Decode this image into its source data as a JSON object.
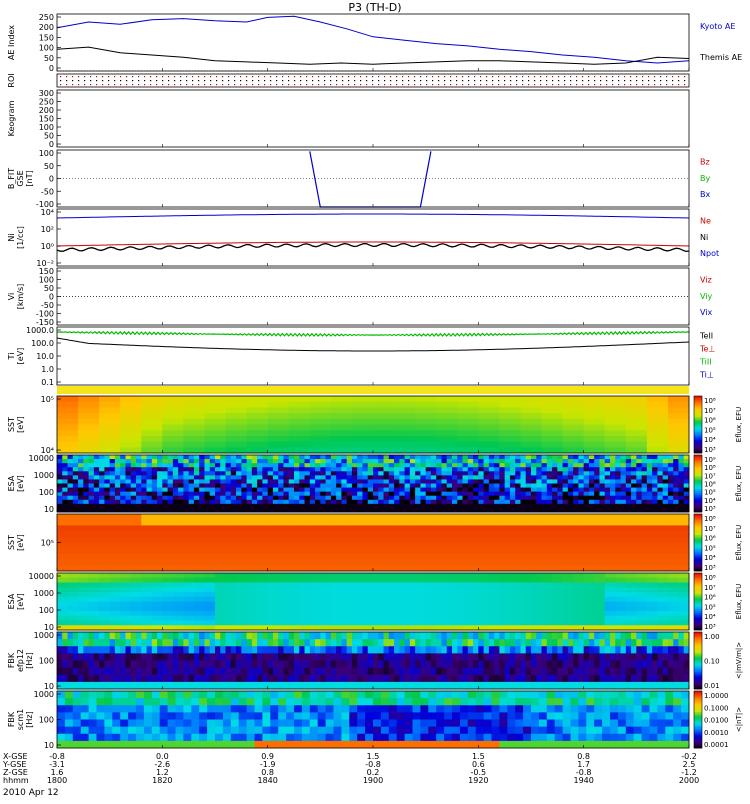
{
  "title": "P3 (TH-D)",
  "date_label": "2010 Apr 12",
  "colors": {
    "kyoto": "#0000cc",
    "themis": "#000000",
    "red": "#cc0000",
    "green": "#00bb00",
    "blue": "#0000cc",
    "black": "#000000",
    "roi_red": "#cc0000"
  },
  "chart_data": [
    {
      "id": "ae",
      "type": "line",
      "ylabel": "AE Index",
      "yticks": [
        "250",
        "200",
        "150",
        "100",
        "50",
        "0"
      ],
      "ylim": [
        0,
        250
      ],
      "series": [
        {
          "name": "Kyoto AE",
          "color": "blue",
          "x": [
            1800,
            1806,
            1812,
            1818,
            1824,
            1830,
            1836,
            1840,
            1845,
            1850,
            1855,
            1900,
            1906,
            1912,
            1918,
            1924,
            1930,
            1936,
            1942,
            1948,
            1954,
            2000
          ],
          "y": [
            190,
            215,
            205,
            225,
            230,
            220,
            215,
            235,
            240,
            215,
            185,
            150,
            135,
            120,
            110,
            95,
            85,
            70,
            60,
            45,
            35,
            45
          ]
        },
        {
          "name": "Themis AE",
          "color": "black",
          "x": [
            1800,
            1806,
            1812,
            1818,
            1824,
            1830,
            1836,
            1842,
            1848,
            1854,
            1900,
            1906,
            1912,
            1918,
            1924,
            1930,
            1936,
            1942,
            1948,
            1954,
            2000
          ],
          "y": [
            95,
            105,
            80,
            70,
            60,
            45,
            40,
            35,
            30,
            35,
            30,
            35,
            40,
            45,
            45,
            40,
            35,
            30,
            35,
            60,
            55
          ]
        }
      ]
    },
    {
      "id": "roi",
      "type": "line",
      "ylabel": "ROI",
      "yticks": []
    },
    {
      "id": "keogram",
      "type": "line",
      "ylabel": "Keogram",
      "yticks": [
        "300",
        "250",
        "200",
        "150",
        "100",
        "50",
        "0"
      ],
      "ylim": [
        0,
        300
      ]
    },
    {
      "id": "bfield",
      "type": "line",
      "ylabel": "B_FIT\nGSE\n[nT]",
      "yticks": [
        "100",
        "50",
        "0",
        "-50",
        "-100"
      ],
      "ylim": [
        -100,
        100
      ],
      "legend": [
        {
          "name": "Bz",
          "color": "red"
        },
        {
          "name": "By",
          "color": "green"
        },
        {
          "name": "Bx",
          "color": "blue"
        }
      ],
      "series": [
        {
          "name": "Bx",
          "color": "blue",
          "x": [
            1848,
            1850,
            1900,
            1909,
            1911
          ],
          "y": [
            95,
            -100,
            -100,
            -100,
            95
          ]
        }
      ]
    },
    {
      "id": "density",
      "type": "line",
      "ylabel": "Ni\n[1/cc]",
      "yticks": [
        "10⁴",
        "10²",
        "10⁰",
        "10⁻²"
      ],
      "legend": [
        {
          "name": "Ne",
          "color": "red"
        },
        {
          "name": "Ni",
          "color": "black"
        },
        {
          "name": "Npot",
          "color": "blue"
        }
      ]
    },
    {
      "id": "velocity",
      "type": "line",
      "ylabel": "Vi\n[km/s]",
      "yticks": [
        "150",
        "100",
        "50",
        "0",
        "-50",
        "-100",
        "-150"
      ],
      "ylim": [
        -150,
        150
      ],
      "legend": [
        {
          "name": "Viz",
          "color": "red"
        },
        {
          "name": "Viy",
          "color": "green"
        },
        {
          "name": "Vix",
          "color": "blue"
        }
      ]
    },
    {
      "id": "temperature",
      "type": "line",
      "ylabel": "Ti\n[eV]",
      "yticks": [
        "1000.0",
        "100.0",
        "10.0",
        "1.0",
        "0.1"
      ],
      "legend": [
        {
          "name": "TeII",
          "color": "black"
        },
        {
          "name": "Te⊥",
          "color": "red"
        },
        {
          "name": "TiII",
          "color": "green"
        },
        {
          "name": "Ti⊥",
          "color": "blue"
        }
      ]
    },
    {
      "id": "sst_e",
      "type": "heatmap",
      "ylabel": "SST\n[eV]",
      "yticks": [
        "10⁵",
        "10⁴"
      ],
      "cbar_ticks": [
        "10⁸",
        "10⁷",
        "10⁶",
        "10⁵",
        "10⁴",
        "10³"
      ],
      "cbar_label": "Eflux, EFU"
    },
    {
      "id": "esa_e",
      "type": "heatmap",
      "ylabel": "ESA\n[eV]",
      "yticks": [
        "10000",
        "1000",
        "100",
        "10"
      ],
      "cbar_ticks": [
        "10⁹",
        "10⁸",
        "10⁷",
        "10⁶",
        "10⁵",
        "10⁴",
        "10³"
      ],
      "cbar_label": "Eflux, EFU"
    },
    {
      "id": "sst_i",
      "type": "heatmap",
      "ylabel": "SST\n[eV]",
      "yticks": [
        "10⁵"
      ],
      "cbar_ticks": [
        "10⁸",
        "10⁷",
        "10⁶",
        "10⁵",
        "10⁴",
        "10³"
      ],
      "cbar_label": "Eflux, EFU"
    },
    {
      "id": "esa_i",
      "type": "heatmap",
      "ylabel": "ESA\n[eV]",
      "yticks": [
        "10000",
        "1000",
        "100",
        "10"
      ],
      "cbar_ticks": [
        "10⁸",
        "10⁷",
        "10⁶",
        "10⁵",
        "10⁴",
        "10³"
      ],
      "cbar_label": "Eflux, EFU"
    },
    {
      "id": "fbk_e",
      "type": "heatmap",
      "ylabel": "FBK\nefp12\n[Hz]",
      "yticks": [
        "1000",
        "100",
        "10"
      ],
      "cbar_ticks": [
        "1.00",
        "0.10",
        "0.01"
      ],
      "cbar_label": "<|mV/m|>"
    },
    {
      "id": "fbk_b",
      "type": "heatmap",
      "ylabel": "FBK\nscm1\n[Hz]",
      "yticks": [
        "1000",
        "100",
        "10"
      ],
      "cbar_ticks": [
        "1.0000",
        "0.1000",
        "0.0100",
        "0.0010",
        "0.0001"
      ],
      "cbar_label": "<|nT|>"
    }
  ],
  "xaxis": {
    "row_labels": [
      "X-GSE",
      "Y-GSE",
      "Z-GSE",
      "hhmm"
    ],
    "columns": [
      {
        "vals": [
          "-0.8",
          "-3.1",
          "1.6",
          "1800"
        ]
      },
      {
        "vals": [
          "0.0",
          "-2.6",
          "1.2",
          "1820"
        ]
      },
      {
        "vals": [
          "0.9",
          "-1.9",
          "0.8",
          "1840"
        ]
      },
      {
        "vals": [
          "1.5",
          "-0.8",
          "0.2",
          "1900"
        ]
      },
      {
        "vals": [
          "1.5",
          "0.6",
          "-0.5",
          "1920"
        ]
      },
      {
        "vals": [
          "0.8",
          "1.7",
          "-0.8",
          "1940"
        ]
      },
      {
        "vals": [
          "-0.2",
          "2.5",
          "-1.2",
          "2000"
        ]
      }
    ]
  }
}
